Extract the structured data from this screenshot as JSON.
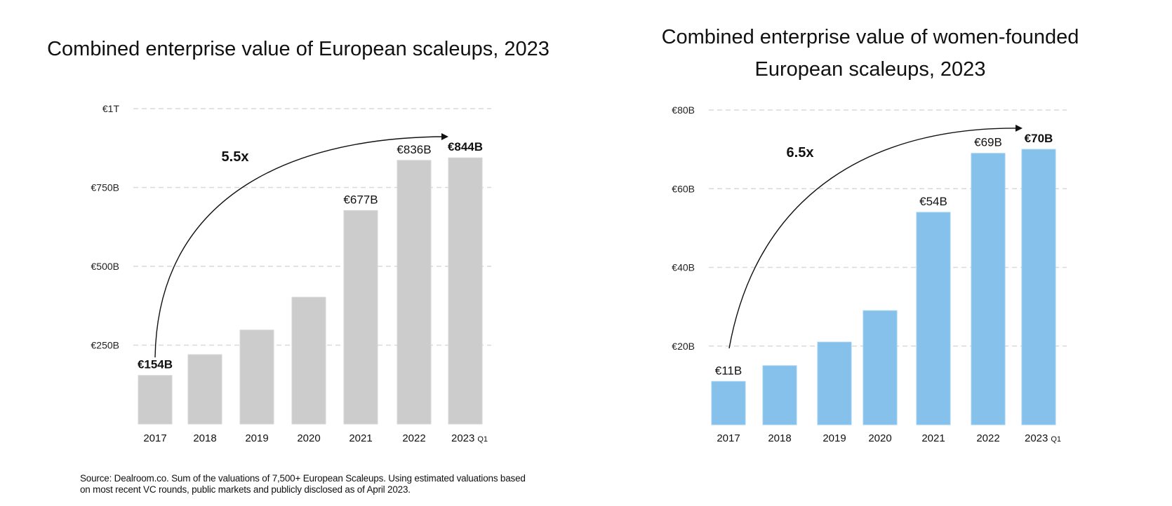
{
  "chart_data": [
    {
      "type": "bar",
      "title": "Combined enterprise  value of European scaleups, 2023",
      "xlabel": "",
      "ylabel": "",
      "categories": [
        "2017",
        "2018",
        "2019",
        "2020",
        "2021",
        "2022",
        "2023"
      ],
      "category_suffix": {
        "2023": "Q1"
      },
      "values": [
        154,
        220,
        298,
        402,
        677,
        836,
        844
      ],
      "unit": "€B",
      "ylim": [
        0,
        1000
      ],
      "yticks": [
        250,
        500,
        750,
        1000
      ],
      "ytick_labels": [
        "€250B",
        "€500B",
        "€750B",
        "€1T"
      ],
      "grid": true,
      "bar_color": "#cccccc",
      "data_labels": [
        {
          "index": 0,
          "text": "€154B",
          "bold": true
        },
        {
          "index": 4,
          "text": "€677B",
          "bold": false
        },
        {
          "index": 5,
          "text": "€836B",
          "bold": false
        },
        {
          "index": 6,
          "text": "€844B",
          "bold": true
        }
      ],
      "annotation": {
        "text": "5.5x",
        "arrow_from_index": 0,
        "arrow_to_index": 6
      }
    },
    {
      "type": "bar",
      "title": "Combined enterprise  value of women-founded European scaleups, 2023",
      "title_lines": [
        "Combined enterprise  value of women-founded",
        "European scaleups, 2023"
      ],
      "xlabel": "",
      "ylabel": "",
      "categories": [
        "2017",
        "2018",
        "2019",
        "2020",
        "2021",
        "2022",
        "2023"
      ],
      "category_suffix": {
        "2023": "Q1"
      },
      "values": [
        11,
        15,
        21,
        29,
        54,
        69,
        70
      ],
      "unit": "€B",
      "ylim": [
        0,
        80
      ],
      "yticks": [
        20,
        40,
        60,
        80
      ],
      "ytick_labels": [
        "€20B",
        "€40B",
        "€60B",
        "€80B"
      ],
      "grid": true,
      "bar_color": "#85c1eb",
      "data_labels": [
        {
          "index": 0,
          "text": "€11B",
          "bold": false
        },
        {
          "index": 4,
          "text": "€54B",
          "bold": false
        },
        {
          "index": 5,
          "text": "€69B",
          "bold": false
        },
        {
          "index": 6,
          "text": "€70B",
          "bold": true
        }
      ],
      "annotation": {
        "text": "6.5x",
        "arrow_from_index": 0,
        "arrow_to_index": 6
      }
    }
  ],
  "source_note": {
    "line1": "Source: Dealroom.co. Sum of the valuations of 7,500+ European Scaleups. Using estimated valuations based",
    "line2": "on most recent VC rounds, public markets and publicly disclosed as of April 2023."
  }
}
